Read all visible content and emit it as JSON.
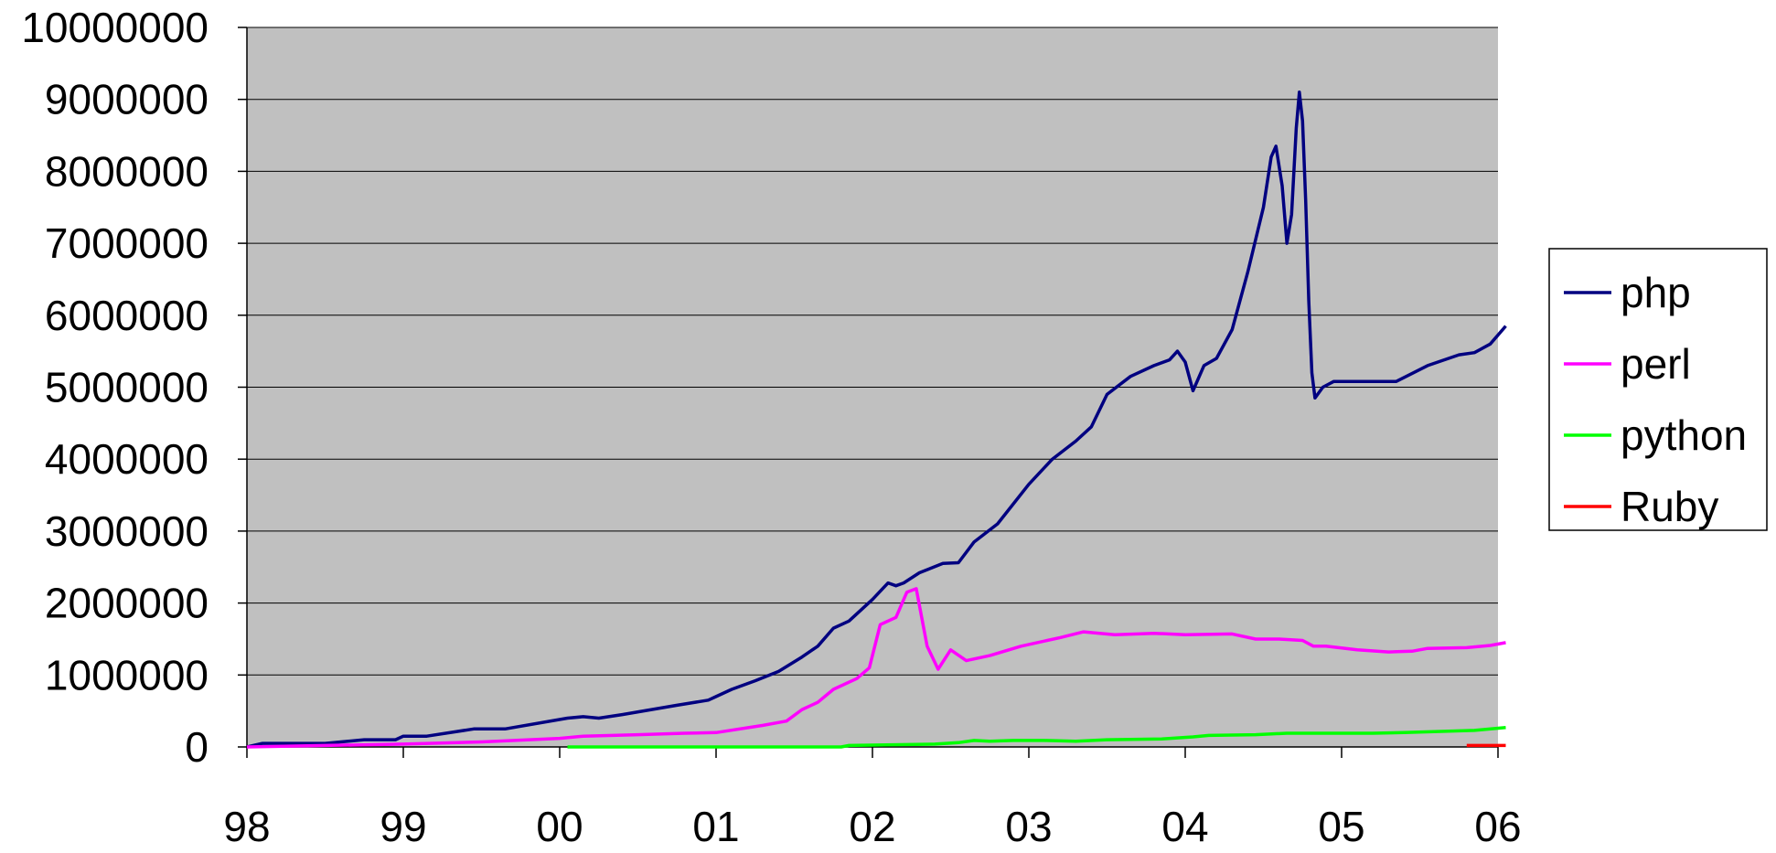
{
  "chart_data": {
    "type": "line",
    "title": "",
    "xlabel": "",
    "ylabel": "",
    "xlim": [
      1998.0,
      2006.0
    ],
    "ylim": [
      0,
      10000000
    ],
    "grid": "horizontal",
    "plot_background": "#c0c0c0",
    "legend_position": "right",
    "x_tick_values": [
      1998,
      1999,
      2000,
      2001,
      2002,
      2003,
      2004,
      2005,
      2006
    ],
    "x_tick_labels": [
      "98",
      "99",
      "00",
      "01",
      "02",
      "03",
      "04",
      "05",
      "06"
    ],
    "y_tick_values": [
      0,
      1000000,
      2000000,
      3000000,
      4000000,
      5000000,
      6000000,
      7000000,
      8000000,
      9000000,
      10000000
    ],
    "y_tick_labels": [
      "0",
      "1000000",
      "2000000",
      "3000000",
      "4000000",
      "5000000",
      "6000000",
      "7000000",
      "8000000",
      "9000000",
      "10000000"
    ],
    "series": [
      {
        "name": "php",
        "color": "#000080",
        "points": [
          [
            1998.0,
            0
          ],
          [
            1998.1,
            50000
          ],
          [
            1998.5,
            50000
          ],
          [
            1998.75,
            100000
          ],
          [
            1998.95,
            100000
          ],
          [
            1999.0,
            150000
          ],
          [
            1999.15,
            150000
          ],
          [
            1999.45,
            250000
          ],
          [
            1999.65,
            250000
          ],
          [
            2000.05,
            400000
          ],
          [
            2000.15,
            420000
          ],
          [
            2000.25,
            400000
          ],
          [
            2000.4,
            450000
          ],
          [
            2000.75,
            580000
          ],
          [
            2000.95,
            650000
          ],
          [
            2001.0,
            700000
          ],
          [
            2001.1,
            800000
          ],
          [
            2001.25,
            920000
          ],
          [
            2001.4,
            1050000
          ],
          [
            2001.55,
            1250000
          ],
          [
            2001.65,
            1400000
          ],
          [
            2001.75,
            1650000
          ],
          [
            2001.85,
            1750000
          ],
          [
            2002.0,
            2050000
          ],
          [
            2002.1,
            2280000
          ],
          [
            2002.15,
            2240000
          ],
          [
            2002.2,
            2280000
          ],
          [
            2002.3,
            2420000
          ],
          [
            2002.45,
            2550000
          ],
          [
            2002.55,
            2560000
          ],
          [
            2002.65,
            2850000
          ],
          [
            2002.8,
            3100000
          ],
          [
            2003.0,
            3650000
          ],
          [
            2003.15,
            4000000
          ],
          [
            2003.3,
            4250000
          ],
          [
            2003.4,
            4450000
          ],
          [
            2003.5,
            4900000
          ],
          [
            2003.65,
            5150000
          ],
          [
            2003.8,
            5300000
          ],
          [
            2003.9,
            5380000
          ],
          [
            2003.95,
            5500000
          ],
          [
            2004.0,
            5350000
          ],
          [
            2004.05,
            4950000
          ],
          [
            2004.12,
            5300000
          ],
          [
            2004.2,
            5400000
          ],
          [
            2004.3,
            5800000
          ],
          [
            2004.4,
            6600000
          ],
          [
            2004.5,
            7500000
          ],
          [
            2004.55,
            8200000
          ],
          [
            2004.58,
            8350000
          ],
          [
            2004.62,
            7800000
          ],
          [
            2004.65,
            7000000
          ],
          [
            2004.68,
            7400000
          ],
          [
            2004.71,
            8600000
          ],
          [
            2004.73,
            9100000
          ],
          [
            2004.75,
            8700000
          ],
          [
            2004.77,
            7600000
          ],
          [
            2004.79,
            6200000
          ],
          [
            2004.81,
            5200000
          ],
          [
            2004.83,
            4850000
          ],
          [
            2004.88,
            5000000
          ],
          [
            2004.95,
            5080000
          ],
          [
            2005.05,
            5080000
          ],
          [
            2005.15,
            5080000
          ],
          [
            2005.35,
            5080000
          ],
          [
            2005.55,
            5300000
          ],
          [
            2005.75,
            5450000
          ],
          [
            2005.85,
            5480000
          ],
          [
            2005.95,
            5600000
          ],
          [
            2006.05,
            5850000
          ]
        ]
      },
      {
        "name": "perl",
        "color": "#ff00ff",
        "points": [
          [
            1998.0,
            0
          ],
          [
            1998.5,
            20000
          ],
          [
            1999.0,
            40000
          ],
          [
            1999.5,
            70000
          ],
          [
            2000.0,
            120000
          ],
          [
            2000.15,
            150000
          ],
          [
            2000.5,
            170000
          ],
          [
            2000.8,
            190000
          ],
          [
            2001.0,
            200000
          ],
          [
            2001.3,
            300000
          ],
          [
            2001.45,
            360000
          ],
          [
            2001.55,
            520000
          ],
          [
            2001.65,
            620000
          ],
          [
            2001.75,
            800000
          ],
          [
            2001.9,
            950000
          ],
          [
            2001.98,
            1100000
          ],
          [
            2002.05,
            1700000
          ],
          [
            2002.15,
            1800000
          ],
          [
            2002.22,
            2150000
          ],
          [
            2002.28,
            2200000
          ],
          [
            2002.35,
            1400000
          ],
          [
            2002.42,
            1080000
          ],
          [
            2002.5,
            1350000
          ],
          [
            2002.6,
            1200000
          ],
          [
            2002.75,
            1270000
          ],
          [
            2002.95,
            1400000
          ],
          [
            2003.2,
            1520000
          ],
          [
            2003.35,
            1600000
          ],
          [
            2003.55,
            1560000
          ],
          [
            2003.8,
            1580000
          ],
          [
            2004.0,
            1560000
          ],
          [
            2004.3,
            1570000
          ],
          [
            2004.45,
            1500000
          ],
          [
            2004.6,
            1500000
          ],
          [
            2004.75,
            1480000
          ],
          [
            2004.82,
            1400000
          ],
          [
            2004.9,
            1400000
          ],
          [
            2005.1,
            1350000
          ],
          [
            2005.3,
            1320000
          ],
          [
            2005.45,
            1330000
          ],
          [
            2005.55,
            1370000
          ],
          [
            2005.8,
            1380000
          ],
          [
            2005.95,
            1410000
          ],
          [
            2006.05,
            1450000
          ]
        ]
      },
      {
        "name": "python",
        "color": "#00ff00",
        "points": [
          [
            2000.05,
            0
          ],
          [
            2001.8,
            0
          ],
          [
            2001.85,
            20000
          ],
          [
            2002.4,
            40000
          ],
          [
            2002.55,
            60000
          ],
          [
            2002.65,
            90000
          ],
          [
            2002.75,
            80000
          ],
          [
            2002.9,
            90000
          ],
          [
            2003.1,
            90000
          ],
          [
            2003.3,
            80000
          ],
          [
            2003.5,
            100000
          ],
          [
            2003.85,
            110000
          ],
          [
            2004.05,
            140000
          ],
          [
            2004.15,
            160000
          ],
          [
            2004.45,
            170000
          ],
          [
            2004.65,
            190000
          ],
          [
            2005.2,
            190000
          ],
          [
            2005.4,
            200000
          ],
          [
            2005.85,
            230000
          ],
          [
            2006.05,
            270000
          ]
        ]
      },
      {
        "name": "Ruby",
        "color": "#ff0000",
        "points": [
          [
            2005.8,
            20000
          ],
          [
            2006.05,
            20000
          ]
        ]
      }
    ]
  }
}
